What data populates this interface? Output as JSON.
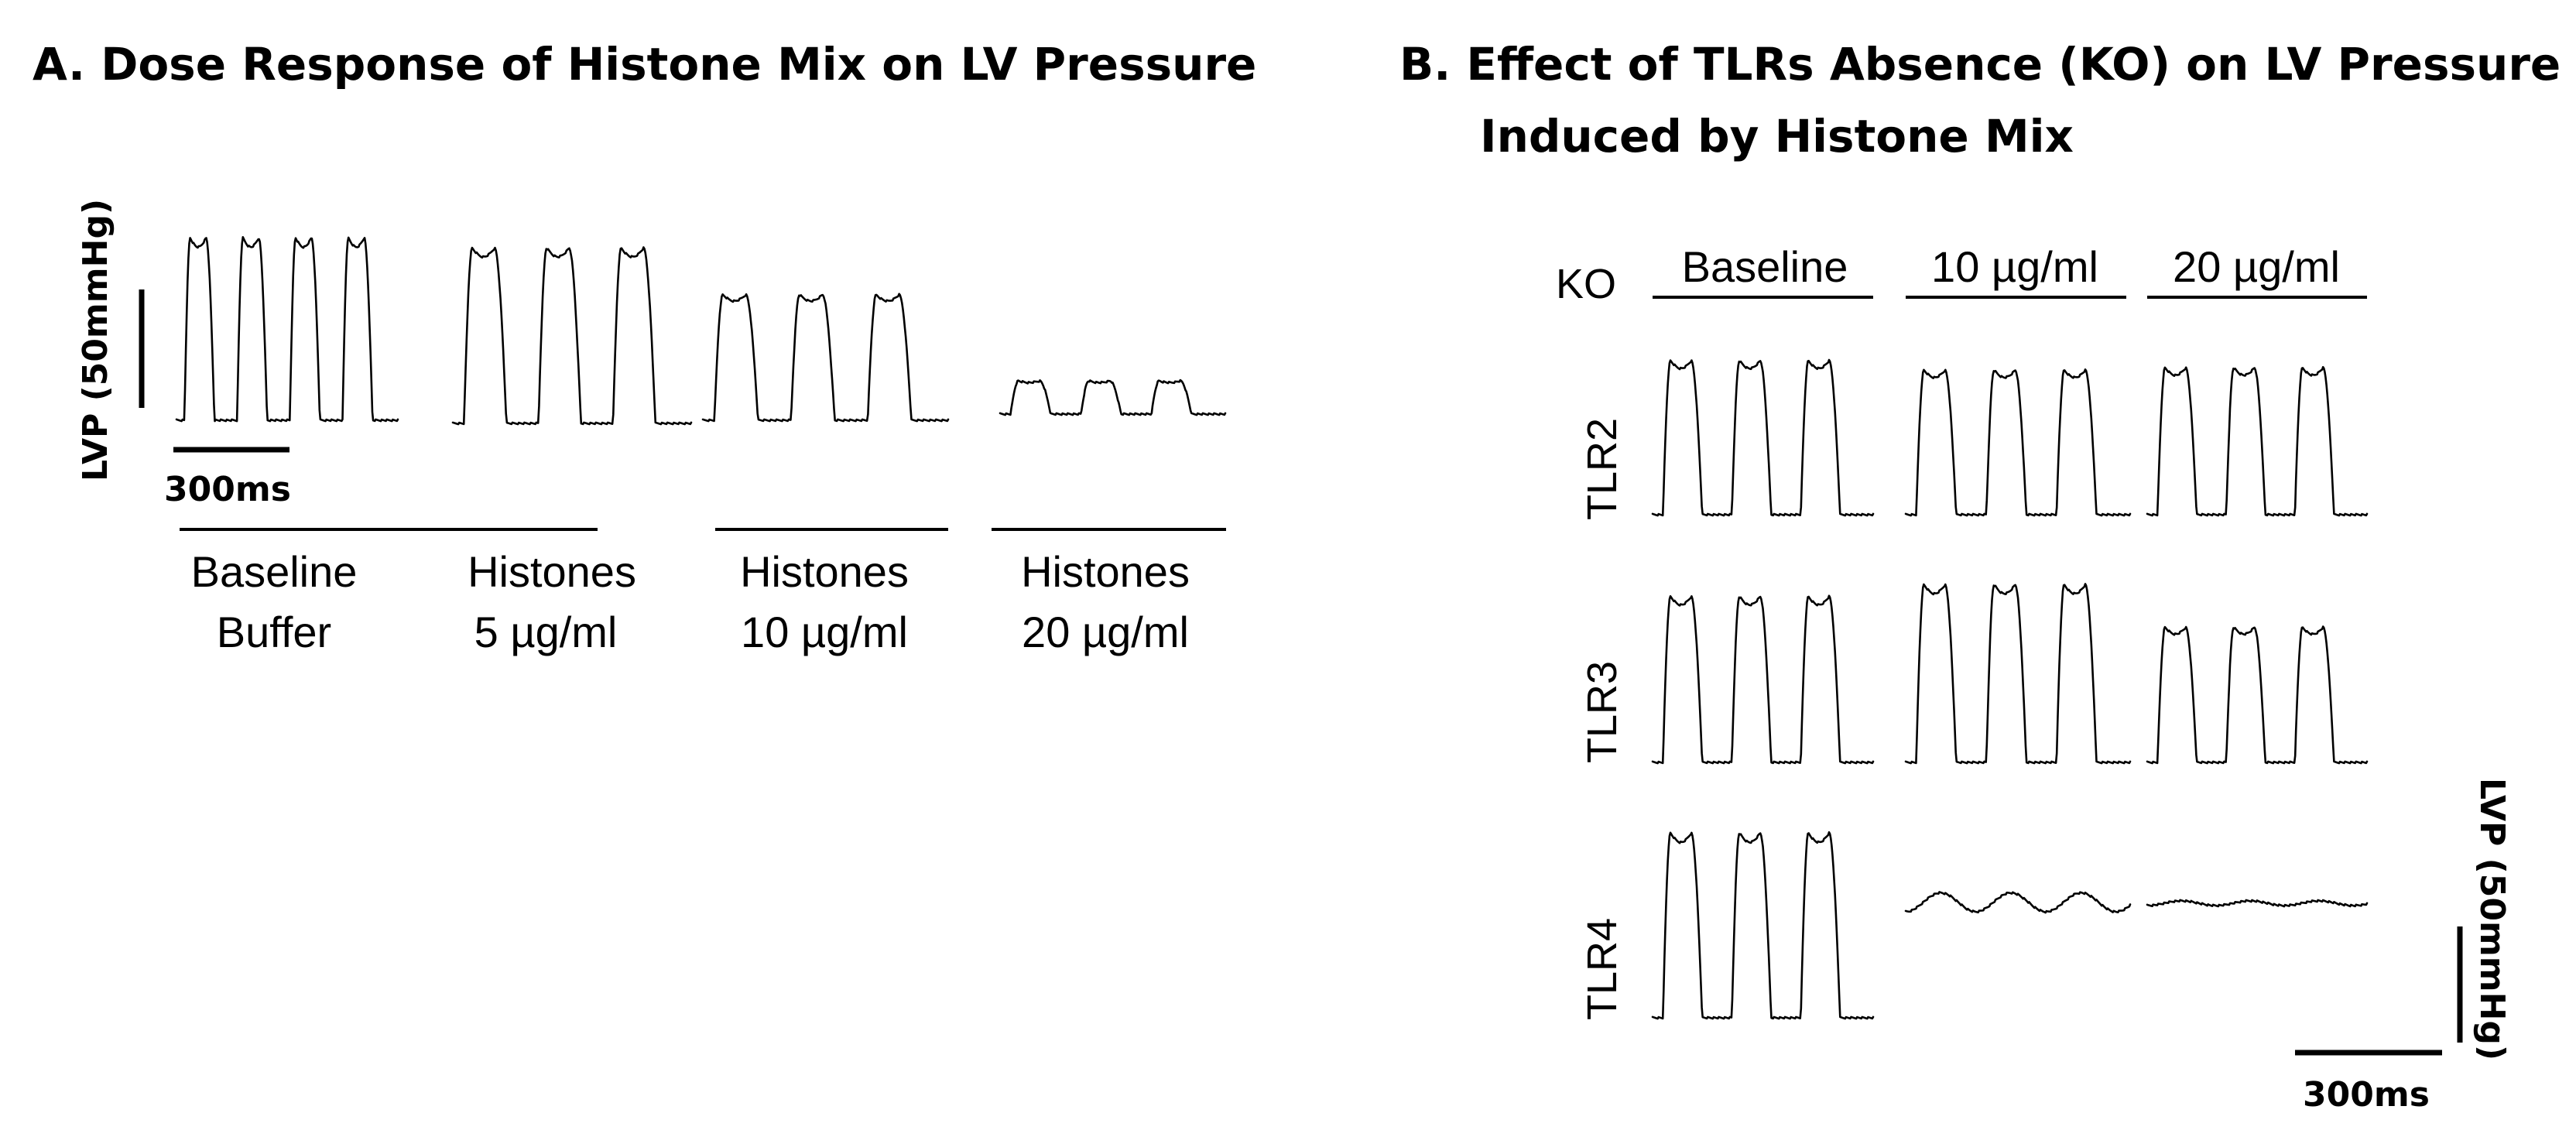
{
  "panel_a": {
    "title": "A.  Dose Response of Histone Mix on LV Pressure",
    "y_scale_label": "LVP (50mmHg)",
    "x_scale_label": "300ms",
    "groups": [
      {
        "line1": "Baseline",
        "line2": "Buffer"
      },
      {
        "line1": "Histones",
        "line2": "5 µg/ml"
      },
      {
        "line1": "Histones",
        "line2": "10 µg/ml"
      },
      {
        "line1": "Histones",
        "line2": "20 µg/ml"
      }
    ]
  },
  "panel_b": {
    "title_line1": "B.  Effect  of TLRs Absence (KO) on LV Pressure",
    "title_line2": "Induced by Histone Mix",
    "ko_label": "KO",
    "columns": [
      "Baseline",
      "10 µg/ml",
      "20 µg/ml"
    ],
    "rows": [
      "TLR2",
      "TLR3",
      "TLR4"
    ],
    "y_scale_label": "LVP (50mmHg)",
    "x_scale_label": "300ms"
  },
  "chart_data": [
    {
      "type": "line",
      "title": "A.  Dose Response of Histone Mix on LV Pressure",
      "xlabel": "300ms",
      "ylabel": "LVP (50mmHg)",
      "units": "LV pressure amplitude in mmHg (estimated from 50 mmHg scale bar)",
      "series": [
        {
          "name": "Baseline Buffer",
          "beats": 4,
          "amplitude": 77
        },
        {
          "name": "Histones 5 µg/ml",
          "beats": 3,
          "amplitude": 74
        },
        {
          "name": "Histones 10 µg/ml",
          "beats": 3,
          "amplitude": 53
        },
        {
          "name": "Histones 20 µg/ml",
          "beats": 3,
          "amplitude": 14
        }
      ]
    },
    {
      "type": "line",
      "title": "B.  Effect  of TLRs Absence (KO) on LV Pressure Induced by Histone Mix",
      "xlabel": "300ms",
      "ylabel": "LVP (50mmHg)",
      "units": "LV pressure amplitude in mmHg (estimated from 50 mmHg scale bar)",
      "categories": [
        "Baseline",
        "10 µg/ml",
        "20 µg/ml"
      ],
      "series": [
        {
          "name": "TLR2",
          "amplitude": [
            65,
            61,
            62
          ],
          "beats": [
            3,
            3,
            3
          ]
        },
        {
          "name": "TLR3",
          "amplitude": [
            70,
            75,
            57
          ],
          "beats": [
            3,
            3,
            3
          ]
        },
        {
          "name": "TLR4",
          "amplitude": [
            78,
            8,
            2
          ],
          "beats": [
            3,
            3,
            3
          ]
        }
      ]
    }
  ]
}
